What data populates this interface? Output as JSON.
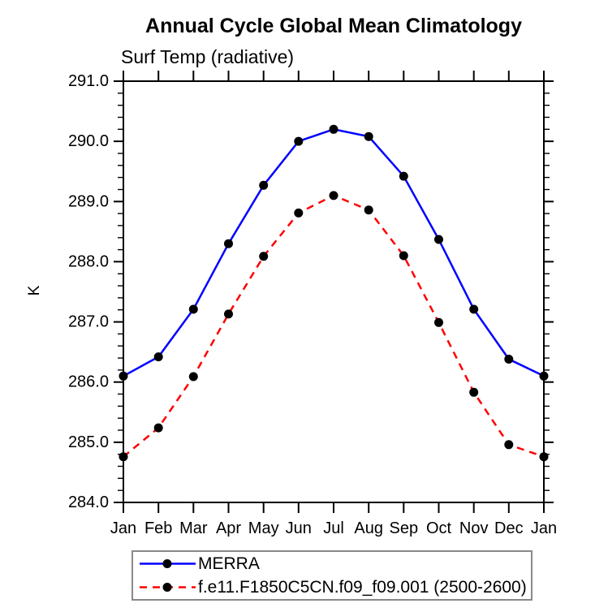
{
  "chart_data": {
    "type": "line",
    "title": "Annual Cycle Global Mean Climatology",
    "subtitle": "Surf Temp (radiative)",
    "ylabel": "K",
    "xlabel": "",
    "categories": [
      "Jan",
      "Feb",
      "Mar",
      "Apr",
      "May",
      "Jun",
      "Jul",
      "Aug",
      "Sep",
      "Oct",
      "Nov",
      "Dec",
      "Jan"
    ],
    "series": [
      {
        "name": "MERRA",
        "color": "#0000ff",
        "line_style": "solid",
        "marker": "filled-black-circle",
        "values": [
          286.1,
          286.42,
          287.21,
          288.3,
          289.27,
          290.0,
          290.2,
          290.08,
          289.42,
          288.37,
          287.21,
          286.38,
          286.1
        ]
      },
      {
        "name": "f.e11.F1850C5CN.f09_f09.001 (2500-2600)",
        "color": "#ff0000",
        "line_style": "dashed",
        "marker": "filled-black-circle",
        "values": [
          284.76,
          285.24,
          286.09,
          287.13,
          288.09,
          288.81,
          289.1,
          288.86,
          288.1,
          286.99,
          285.83,
          284.96,
          284.76
        ]
      }
    ],
    "ylim": [
      284.0,
      291.0
    ],
    "ytick_major_interval": 1.0,
    "ytick_minor_interval": 0.2,
    "ytick_labels": [
      "284.0",
      "285.0",
      "286.0",
      "287.0",
      "288.0",
      "289.0",
      "290.0",
      "291.0"
    ],
    "grid": false,
    "tick_direction": "out",
    "ticks_on_all_sides": true,
    "legend_position": "bottom",
    "axis_color": "#000000",
    "marker_color": "#000000",
    "background_color": "#ffffff"
  }
}
